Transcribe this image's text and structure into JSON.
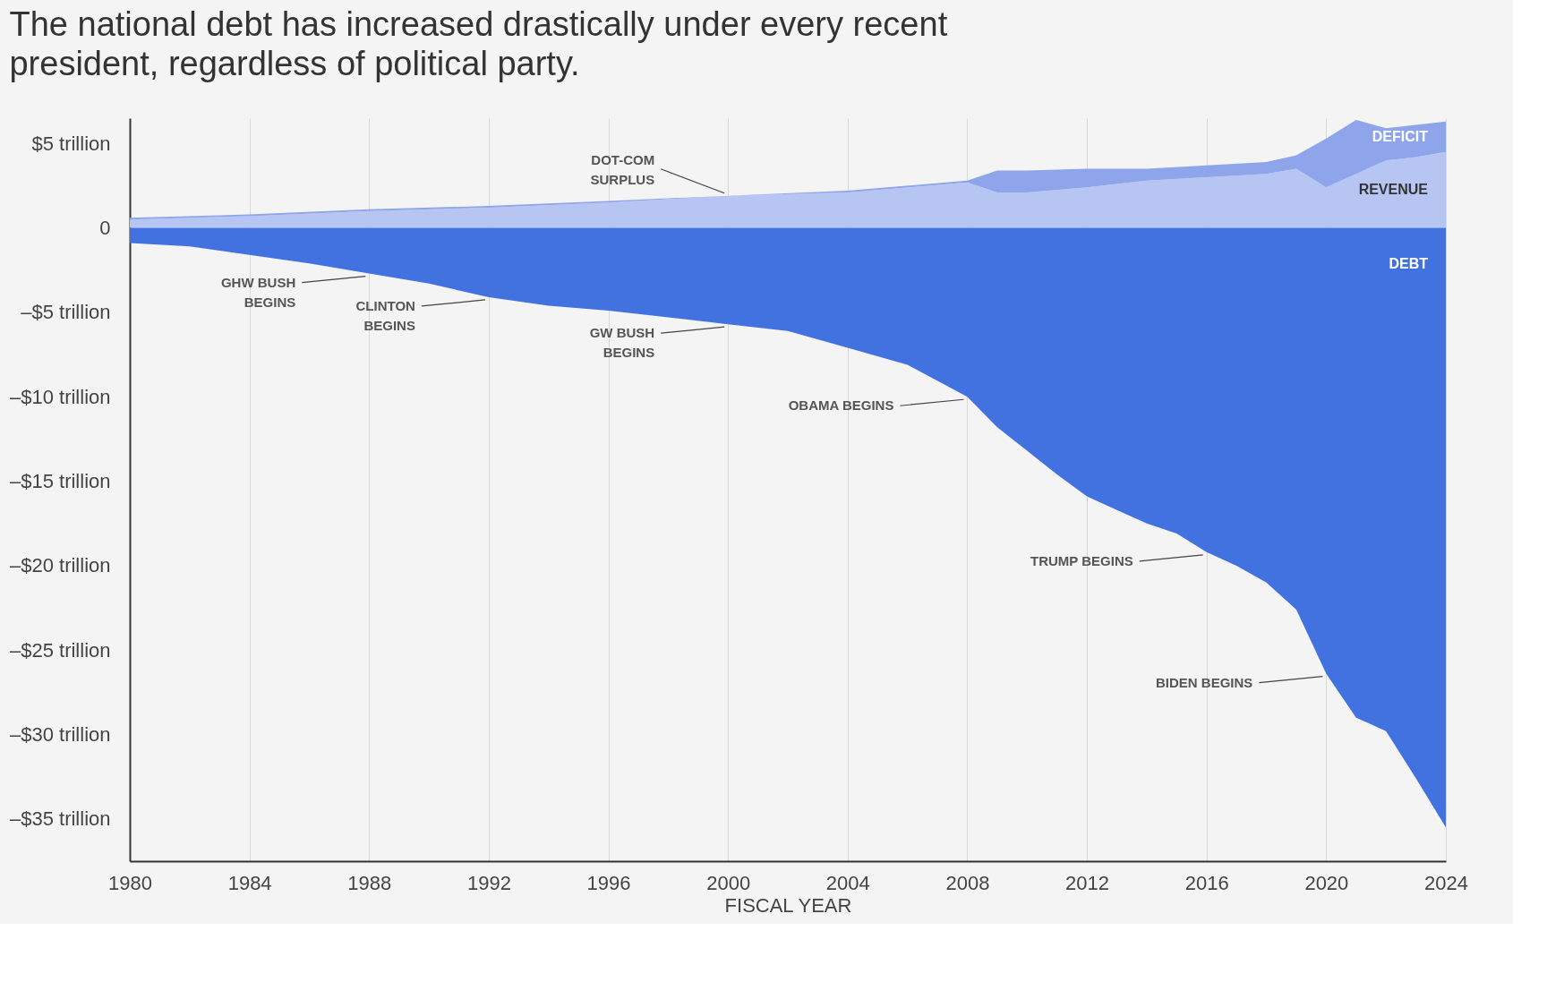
{
  "chart_data": {
    "type": "area",
    "title": "The national debt has increased drastically under every recent president, regardless of political party.",
    "xlabel": "FISCAL YEAR",
    "stacked": true,
    "grid": "x",
    "xlim": [
      1980,
      2024
    ],
    "xticks": [
      1980,
      1984,
      1988,
      1992,
      1996,
      2000,
      2004,
      2008,
      2012,
      2016,
      2020,
      2024
    ],
    "ylim": [
      -37.5,
      6.5
    ],
    "yticks": [
      {
        "value": 5,
        "label": "$5 trillion"
      },
      0,
      {
        "value": -5,
        "label": "–$5 trillion"
      },
      {
        "value": -10,
        "label": "–$10 trillion"
      },
      {
        "value": -15,
        "label": "–$15 trillion"
      },
      {
        "value": -20,
        "label": "–$20 trillion"
      },
      {
        "value": -25,
        "label": "–$25 trillion"
      },
      {
        "value": -30,
        "label": "–$30 trillion"
      },
      {
        "value": -35,
        "label": "–$35 trillion"
      }
    ],
    "x": [
      1980,
      1984,
      1988,
      1992,
      1996,
      2000,
      2004,
      2008,
      2009,
      2010,
      2012,
      2014,
      2016,
      2018,
      2019,
      2020,
      2021,
      2022,
      2023,
      2024
    ],
    "series": [
      {
        "name": "REVENUE",
        "color": "#b7c5f3",
        "values": [
          0.5,
          0.7,
          1.0,
          1.2,
          1.5,
          1.9,
          2.1,
          2.7,
          2.1,
          2.1,
          2.4,
          2.8,
          3.0,
          3.2,
          3.5,
          2.4,
          3.2,
          4.0,
          4.2,
          4.5
        ]
      },
      {
        "name": "DEFICIT",
        "color": "#8ea5ec",
        "values": [
          0.1,
          0.1,
          0.1,
          0.1,
          0.1,
          0,
          0.1,
          0.1,
          1.3,
          1.3,
          1.1,
          0.7,
          0.7,
          0.7,
          0.8,
          2.9,
          3.2,
          1.9,
          1.9,
          1.8
        ]
      },
      {
        "name": "DEBT",
        "color": "#4272e0",
        "x": [
          1980,
          1982,
          1984,
          1986,
          1988,
          1990,
          1992,
          1994,
          1996,
          1998,
          2000,
          2002,
          2004,
          2006,
          2008,
          2009,
          2010,
          2011,
          2012,
          2013,
          2014,
          2015,
          2016,
          2017,
          2018,
          2019,
          2020,
          2021,
          2022,
          2023,
          2024
        ],
        "values": [
          -0.9,
          -1.1,
          -1.6,
          -2.1,
          -2.7,
          -3.3,
          -4.1,
          -4.6,
          -4.9,
          -5.3,
          -5.7,
          -6.1,
          -7.1,
          -8.1,
          -10.0,
          -11.8,
          -13.2,
          -14.6,
          -15.9,
          -16.7,
          -17.5,
          -18.1,
          -19.2,
          -20.0,
          -21.0,
          -22.6,
          -26.4,
          -29.0,
          -29.8,
          -32.6,
          -35.5
        ]
      }
    ],
    "annotations": [
      {
        "text": "DOT-COM\nSURPLUS",
        "x": 2000,
        "y": 1.9
      },
      {
        "text": "GHW BUSH\nBEGINS",
        "x": 1988,
        "y": -2.7
      },
      {
        "text": "CLINTON\nBEGINS",
        "x": 1992,
        "y": -4.1
      },
      {
        "text": "GW BUSH\nBEGINS",
        "x": 2000,
        "y": -5.7
      },
      {
        "text": "OBAMA BEGINS",
        "x": 2008,
        "y": -10.0
      },
      {
        "text": "TRUMP BEGINS",
        "x": 2016,
        "y": -19.2
      },
      {
        "text": "BIDEN BEGINS",
        "x": 2020,
        "y": -26.4
      }
    ]
  }
}
